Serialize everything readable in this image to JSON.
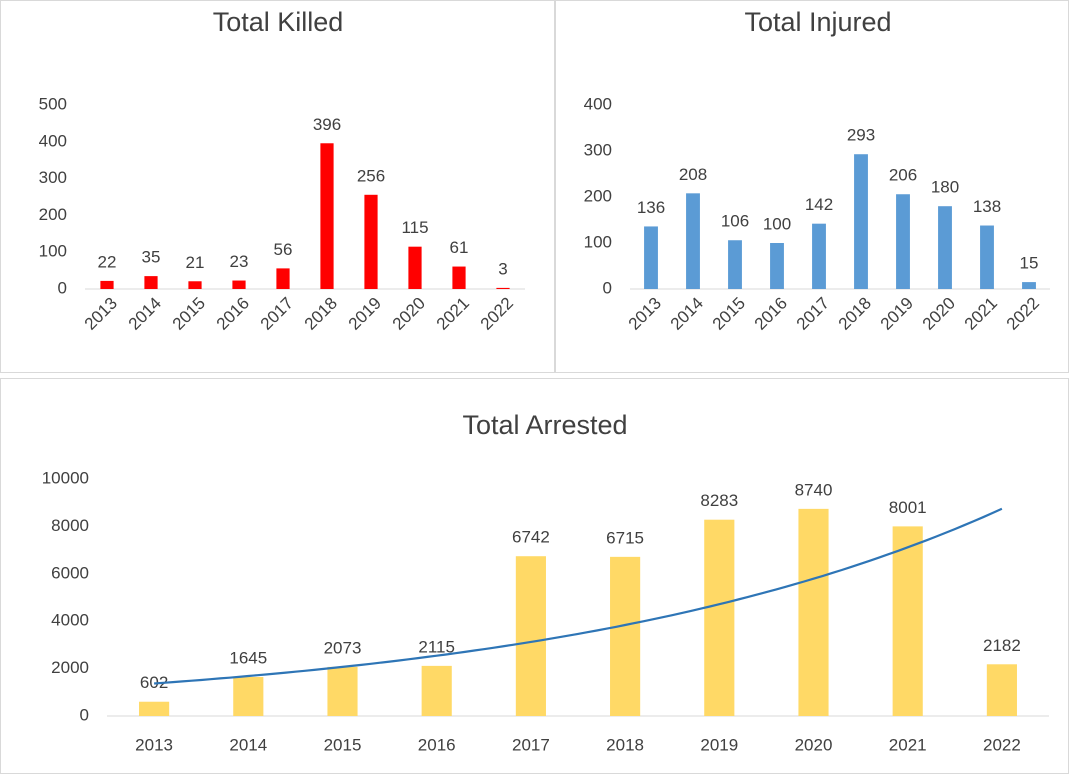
{
  "chart_data": [
    {
      "type": "bar",
      "title": "Total Killed",
      "categories": [
        "2013",
        "2014",
        "2015",
        "2016",
        "2017",
        "2018",
        "2019",
        "2020",
        "2021",
        "2022"
      ],
      "values": [
        22,
        35,
        21,
        23,
        56,
        396,
        256,
        115,
        61,
        3
      ],
      "color": "#ff0000",
      "ylim": [
        0,
        500
      ],
      "yticks": [
        0,
        100,
        200,
        300,
        400,
        500
      ],
      "grid": false
    },
    {
      "type": "bar",
      "title": "Total Injured",
      "categories": [
        "2013",
        "2014",
        "2015",
        "2016",
        "2017",
        "2018",
        "2019",
        "2020",
        "2021",
        "2022"
      ],
      "values": [
        136,
        208,
        106,
        100,
        142,
        293,
        206,
        180,
        138,
        15
      ],
      "color": "#5b9bd5",
      "ylim": [
        0,
        400
      ],
      "yticks": [
        0,
        100,
        200,
        300,
        400
      ],
      "grid": false
    },
    {
      "type": "bar",
      "title": "Total Arrested",
      "categories": [
        "2013",
        "2014",
        "2015",
        "2016",
        "2017",
        "2018",
        "2019",
        "2020",
        "2021",
        "2022"
      ],
      "values": [
        602,
        1645,
        2073,
        2115,
        6742,
        6715,
        8283,
        8740,
        8001,
        2182
      ],
      "color": "#ffd966",
      "ylim": [
        0,
        10000
      ],
      "yticks": [
        0,
        2000,
        4000,
        6000,
        8000,
        10000
      ],
      "grid": false,
      "trendline": {
        "type": "exponential",
        "color": "#2e75b6"
      }
    }
  ]
}
